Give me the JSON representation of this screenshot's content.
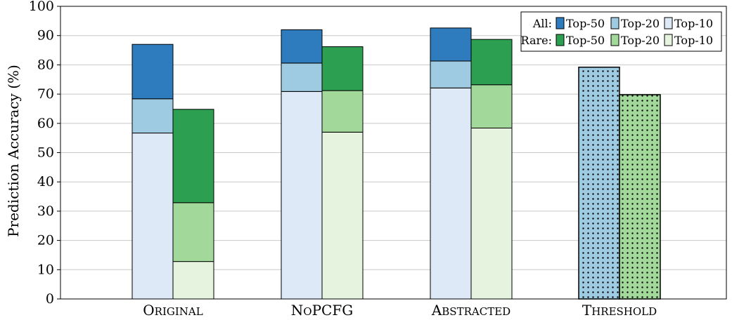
{
  "chart_data": {
    "type": "bar",
    "ylabel": "Prediction Accuracy (%)",
    "ylim": [
      0,
      100
    ],
    "yticks": [
      0,
      10,
      20,
      30,
      40,
      50,
      60,
      70,
      80,
      90,
      100
    ],
    "grid": true,
    "legend_position": "top-right",
    "categories": [
      "Original",
      "NoPCFG",
      "Abstracted",
      "Threshold"
    ],
    "groups": [
      {
        "name": "All",
        "legend_label": "All:",
        "colors": {
          "Top-50": "#2e7bbd",
          "Top-20": "#9fcbe2",
          "Top-10": "#dde9f6"
        }
      },
      {
        "name": "Rare",
        "legend_label": "Rare:",
        "colors": {
          "Top-50": "#2ca050",
          "Top-20": "#a2d99a",
          "Top-10": "#e6f4df"
        }
      }
    ],
    "series": [
      {
        "name": "Top-10",
        "group": "All",
        "values": [
          56.7,
          70.9,
          72.1,
          null
        ]
      },
      {
        "name": "Top-20",
        "group": "All",
        "values": [
          68.4,
          80.6,
          81.3,
          null
        ]
      },
      {
        "name": "Top-50",
        "group": "All",
        "values": [
          87.0,
          92.0,
          92.6,
          null
        ]
      },
      {
        "name": "Top-10",
        "group": "Rare",
        "values": [
          12.8,
          57.0,
          58.4,
          null
        ]
      },
      {
        "name": "Top-20",
        "group": "Rare",
        "values": [
          32.9,
          71.2,
          73.2,
          null
        ]
      },
      {
        "name": "Top-50",
        "group": "Rare",
        "values": [
          64.8,
          86.2,
          88.7,
          null
        ]
      }
    ],
    "threshold": {
      "category": "Threshold",
      "pattern": "dotted",
      "All": 79.2,
      "Rare": 69.8,
      "colors": {
        "All": "#9fcbe2",
        "Rare": "#a2d99a"
      }
    },
    "legend_items": [
      "Top-50",
      "Top-20",
      "Top-10"
    ]
  }
}
